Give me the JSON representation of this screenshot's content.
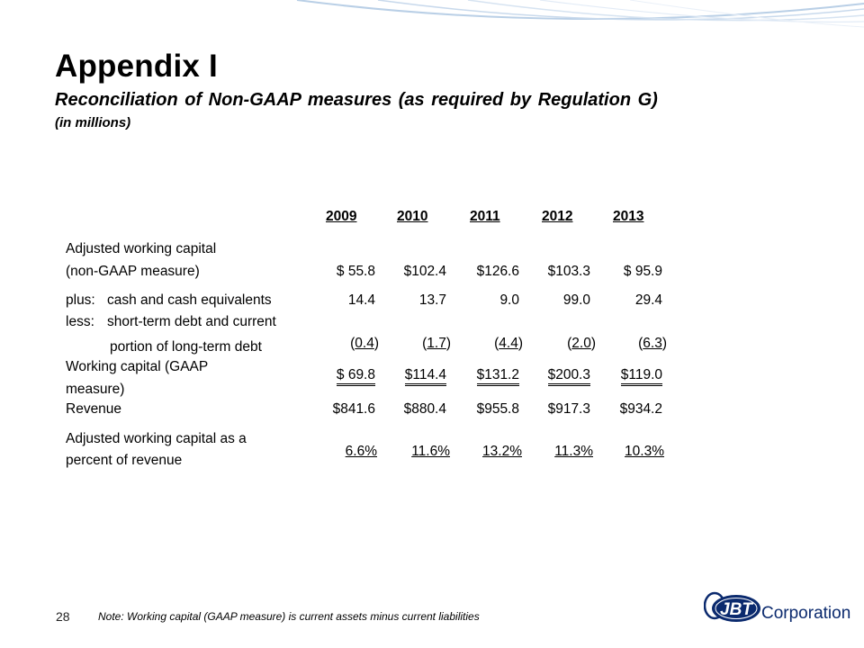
{
  "header": {
    "title": "Appendix I",
    "subtitle": "Reconciliation of Non-GAAP measures (as required by Regulation G)",
    "units": "(in millions)"
  },
  "table": {
    "years": [
      "2009",
      "2010",
      "2011",
      "2012",
      "2013"
    ],
    "rows": {
      "adjusted_wc": {
        "label_line1": "Adjusted working capital",
        "label_line2": "(non-GAAP measure)",
        "values": [
          "$   55.8",
          "$102.4",
          "$126.6",
          "$103.3",
          "$  95.9"
        ]
      },
      "plus_cash": {
        "prefix": "plus:",
        "label": "cash and cash equivalents",
        "values": [
          "14.4",
          "13.7",
          "9.0",
          "99.0",
          "29.4"
        ]
      },
      "less_debt": {
        "prefix": "less:",
        "label_line1": "short-term debt and current",
        "label_line2": "portion of long-term debt",
        "values": [
          "0.4",
          "1.7",
          "4.4",
          "2.0",
          "6.3"
        ]
      },
      "working_capital": {
        "label_line1": "Working capital (GAAP",
        "label_line2": "measure)",
        "values": [
          "$   69.8",
          "$114.4",
          "$131.2",
          "$200.3",
          "$119.0"
        ]
      },
      "revenue": {
        "label": "Revenue",
        "values": [
          "$841.6",
          "$880.4",
          "$955.8",
          "$917.3",
          "$934.2"
        ]
      },
      "percent": {
        "label_line1": "Adjusted working capital as a",
        "label_line2": "percent of revenue",
        "values": [
          "6.6%",
          "11.6%",
          "13.2%",
          "11.3%",
          "10.3%"
        ]
      }
    }
  },
  "footer": {
    "page_number": "28",
    "note": "Note:  Working capital (GAAP measure) is current assets minus current liabilities",
    "logo_text": "Corporation",
    "logo_mark": "JBT"
  },
  "colors": {
    "swoosh": "#b9cfe6",
    "logo_blue": "#0b2a6e"
  }
}
